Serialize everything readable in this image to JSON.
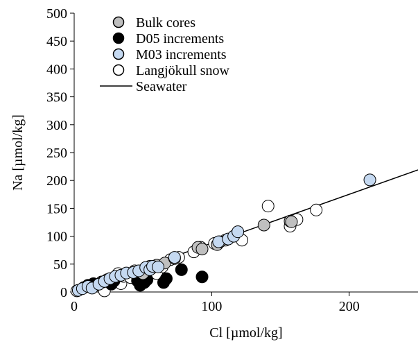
{
  "chart_data": {
    "type": "scatter",
    "title": "",
    "xlabel": "Cl [µmol/kg]",
    "ylabel": "Na [µmol/kg]",
    "xlim": [
      0,
      250
    ],
    "ylim": [
      0,
      500
    ],
    "xticks": [
      0,
      100,
      200
    ],
    "xtick_labels": [
      "0",
      "100",
      "200"
    ],
    "yticks": [
      0,
      50,
      100,
      150,
      200,
      250,
      300,
      350,
      400,
      450,
      500
    ],
    "ytick_labels": [
      "0",
      "50",
      "100",
      "150",
      "200",
      "250",
      "300",
      "350",
      "400",
      "450",
      "500"
    ],
    "grid": false,
    "legend_position": "top-left",
    "series": [
      {
        "name": "Bulk cores",
        "marker": "circle",
        "fill": "#bfbfbf",
        "stroke": "#000000",
        "points": [
          [
            50,
            33
          ],
          [
            56,
            42
          ],
          [
            60,
            48
          ],
          [
            66,
            52
          ],
          [
            73,
            60
          ],
          [
            90,
            80
          ],
          [
            93,
            77
          ],
          [
            104,
            85
          ],
          [
            106,
            90
          ],
          [
            138,
            120
          ],
          [
            157,
            127
          ],
          [
            158,
            126
          ]
        ]
      },
      {
        "name": "D05 increments",
        "marker": "circle",
        "fill": "#000000",
        "stroke": "#000000",
        "points": [
          [
            10,
            12
          ],
          [
            14,
            15
          ],
          [
            21,
            18
          ],
          [
            27,
            14
          ],
          [
            29,
            20
          ],
          [
            46,
            20
          ],
          [
            48,
            12
          ],
          [
            51,
            17
          ],
          [
            53,
            22
          ],
          [
            65,
            17
          ],
          [
            67,
            24
          ],
          [
            78,
            40
          ],
          [
            93,
            27
          ]
        ]
      },
      {
        "name": "M03 increments",
        "marker": "circle",
        "fill": "#c5d9f1",
        "stroke": "#000000",
        "points": [
          [
            3,
            3
          ],
          [
            6,
            6
          ],
          [
            10,
            10
          ],
          [
            13,
            7
          ],
          [
            18,
            14
          ],
          [
            22,
            19
          ],
          [
            26,
            24
          ],
          [
            30,
            28
          ],
          [
            34,
            30
          ],
          [
            38,
            34
          ],
          [
            43,
            35
          ],
          [
            47,
            38
          ],
          [
            52,
            44
          ],
          [
            55,
            40
          ],
          [
            57,
            46
          ],
          [
            61,
            45
          ],
          [
            73,
            62
          ],
          [
            105,
            90
          ],
          [
            112,
            95
          ],
          [
            116,
            100
          ],
          [
            119,
            108
          ],
          [
            215,
            201
          ]
        ]
      },
      {
        "name": "Langjökull snow",
        "marker": "circle",
        "fill": "#ffffff",
        "stroke": "#000000",
        "points": [
          [
            2,
            2
          ],
          [
            7,
            8
          ],
          [
            13,
            10
          ],
          [
            18,
            13
          ],
          [
            20,
            18
          ],
          [
            22,
            2
          ],
          [
            24,
            22
          ],
          [
            29,
            18
          ],
          [
            32,
            33
          ],
          [
            34,
            15
          ],
          [
            36,
            28
          ],
          [
            41,
            26
          ],
          [
            44,
            38
          ],
          [
            48,
            30
          ],
          [
            53,
            42
          ],
          [
            55,
            46
          ],
          [
            58,
            40
          ],
          [
            60,
            33
          ],
          [
            64,
            45
          ],
          [
            70,
            58
          ],
          [
            76,
            62
          ],
          [
            87,
            72
          ],
          [
            92,
            80
          ],
          [
            102,
            87
          ],
          [
            110,
            93
          ],
          [
            122,
            93
          ],
          [
            141,
            154
          ],
          [
            157,
            118
          ],
          [
            162,
            130
          ],
          [
            176,
            147
          ]
        ]
      },
      {
        "name": "Seawater",
        "marker": "line",
        "stroke": "#000000",
        "points": [
          [
            0,
            0
          ],
          [
            250,
            219
          ]
        ]
      }
    ]
  }
}
